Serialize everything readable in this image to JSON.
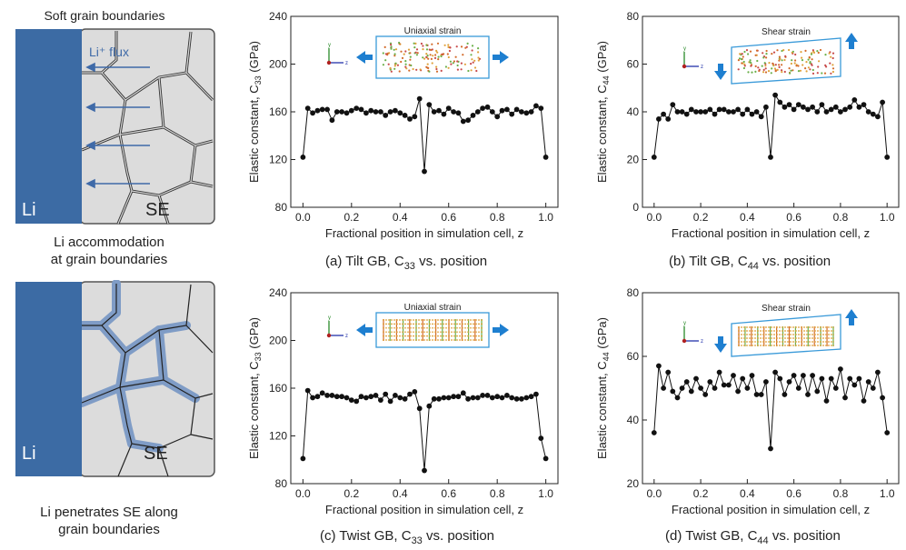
{
  "left_panels": {
    "top": {
      "title": "Soft grain boundaries",
      "flux_label": "Li⁺ flux",
      "li_label": "Li",
      "se_label": "SE",
      "caption_line1": "Li accommodation",
      "caption_line2": "at grain boundaries"
    },
    "bottom": {
      "li_label": "Li",
      "se_label": "SE",
      "caption_line1": "Li penetrates SE along",
      "caption_line2": "grain boundaries"
    }
  },
  "colors": {
    "li_blue": "#3c6ba4",
    "se_gray": "#dcdcdc",
    "arrow_blue": "#3f6aa8",
    "inset_arrow": "#1e7fd0",
    "inset_frame": "#3a9ad9",
    "marker": "#111111"
  },
  "charts": [
    {
      "id": "a",
      "caption": "(a) Tilt GB, C33 vs. position",
      "caption_main": "(a) Tilt GB, C",
      "caption_sub": "33",
      "caption_tail": " vs. position",
      "ylabel_main": "Elastic constant, C",
      "ylabel_sub": "33",
      "ylabel_tail": " (GPa)",
      "inset_label": "Uniaxial strain",
      "inset_type": "uniaxial",
      "inset_lattice": "tilt"
    },
    {
      "id": "b",
      "caption": "(b) Tilt GB, C44 vs. position",
      "caption_main": "(b) Tilt GB, C",
      "caption_sub": "44",
      "caption_tail": " vs. position",
      "ylabel_main": "Elastic constant, C",
      "ylabel_sub": "44",
      "ylabel_tail": " (GPa)",
      "inset_label": "Shear strain",
      "inset_type": "shear",
      "inset_lattice": "tilt"
    },
    {
      "id": "c",
      "caption": "(c) Twist GB, C33 vs. position",
      "caption_main": "(c) Twist GB, C",
      "caption_sub": "33",
      "caption_tail": " vs. position",
      "ylabel_main": "Elastic constant, C",
      "ylabel_sub": "33",
      "ylabel_tail": " (GPa)",
      "inset_label": "Uniaxial strain",
      "inset_type": "uniaxial",
      "inset_lattice": "twist"
    },
    {
      "id": "d",
      "caption": "(d) Twist GB, C44 vs. position",
      "caption_main": "(d) Twist GB, C",
      "caption_sub": "44",
      "caption_tail": " vs. position",
      "ylabel_main": "Elastic constant, C",
      "ylabel_sub": "44",
      "ylabel_tail": " (GPa)",
      "inset_label": "Shear strain",
      "inset_type": "shear",
      "inset_lattice": "twist"
    }
  ],
  "chart_data": [
    {
      "type": "line",
      "title": "(a) Tilt GB, C33 vs. position",
      "xlabel": "Fractional position in simulation cell, z",
      "ylabel": "Elastic constant, C33 (GPa)",
      "xlim": [
        -0.05,
        1.05
      ],
      "ylim": [
        80,
        240
      ],
      "xticks": [
        0.0,
        0.2,
        0.4,
        0.6,
        0.8,
        1.0
      ],
      "xtick_labels": [
        "0.0",
        "0.2",
        "0.4",
        "0.6",
        "0.8",
        "1.0"
      ],
      "yticks": [
        80,
        120,
        160,
        200,
        240
      ],
      "ytick_labels": [
        "80",
        "120",
        "160",
        "200",
        "240"
      ],
      "x": [
        0.0,
        0.02,
        0.04,
        0.06,
        0.08,
        0.1,
        0.12,
        0.14,
        0.16,
        0.18,
        0.2,
        0.22,
        0.24,
        0.26,
        0.28,
        0.3,
        0.32,
        0.34,
        0.36,
        0.38,
        0.4,
        0.42,
        0.44,
        0.46,
        0.48,
        0.5,
        0.52,
        0.54,
        0.56,
        0.58,
        0.6,
        0.62,
        0.64,
        0.66,
        0.68,
        0.7,
        0.72,
        0.74,
        0.76,
        0.78,
        0.8,
        0.82,
        0.84,
        0.86,
        0.88,
        0.9,
        0.92,
        0.94,
        0.96,
        0.98,
        1.0
      ],
      "y": [
        122,
        163,
        159,
        161,
        162,
        162,
        153,
        160,
        160,
        159,
        161,
        163,
        162,
        159,
        161,
        160,
        160,
        157,
        160,
        161,
        159,
        157,
        154,
        156,
        171,
        110,
        166,
        160,
        161,
        158,
        163,
        160,
        159,
        152,
        153,
        157,
        160,
        163,
        164,
        160,
        156,
        161,
        162,
        158,
        162,
        160,
        159,
        160,
        165,
        163,
        122
      ]
    },
    {
      "type": "line",
      "title": "(b) Tilt GB, C44 vs. position",
      "xlabel": "Fractional position in simulation cell, z",
      "ylabel": "Elastic constant, C44 (GPa)",
      "xlim": [
        -0.05,
        1.05
      ],
      "ylim": [
        0,
        80
      ],
      "xticks": [
        0.0,
        0.2,
        0.4,
        0.6,
        0.8,
        1.0
      ],
      "xtick_labels": [
        "0.0",
        "0.2",
        "0.4",
        "0.6",
        "0.8",
        "1.0"
      ],
      "yticks": [
        0,
        20,
        40,
        60,
        80
      ],
      "ytick_labels": [
        "0",
        "20",
        "40",
        "60",
        "80"
      ],
      "x": [
        0.0,
        0.02,
        0.04,
        0.06,
        0.08,
        0.1,
        0.12,
        0.14,
        0.16,
        0.18,
        0.2,
        0.22,
        0.24,
        0.26,
        0.28,
        0.3,
        0.32,
        0.34,
        0.36,
        0.38,
        0.4,
        0.42,
        0.44,
        0.46,
        0.48,
        0.5,
        0.52,
        0.54,
        0.56,
        0.58,
        0.6,
        0.62,
        0.64,
        0.66,
        0.68,
        0.7,
        0.72,
        0.74,
        0.76,
        0.78,
        0.8,
        0.82,
        0.84,
        0.86,
        0.88,
        0.9,
        0.92,
        0.94,
        0.96,
        0.98,
        1.0
      ],
      "y": [
        21,
        37,
        39,
        37,
        43,
        40,
        40,
        39,
        41,
        40,
        40,
        40,
        41,
        39,
        41,
        41,
        40,
        40,
        41,
        39,
        41,
        39,
        40,
        38,
        42,
        21,
        47,
        44,
        42,
        43,
        41,
        43,
        42,
        41,
        42,
        40,
        43,
        40,
        41,
        42,
        40,
        41,
        42,
        45,
        42,
        43,
        40,
        39,
        38,
        44,
        21
      ]
    },
    {
      "type": "line",
      "title": "(c) Twist GB, C33 vs. position",
      "xlabel": "Fractional position in simulation cell, z",
      "ylabel": "Elastic constant, C33 (GPa)",
      "xlim": [
        -0.05,
        1.05
      ],
      "ylim": [
        80,
        240
      ],
      "xticks": [
        0.0,
        0.2,
        0.4,
        0.6,
        0.8,
        1.0
      ],
      "xtick_labels": [
        "0.0",
        "0.2",
        "0.4",
        "0.6",
        "0.8",
        "1.0"
      ],
      "yticks": [
        80,
        120,
        160,
        200,
        240
      ],
      "ytick_labels": [
        "80",
        "120",
        "160",
        "200",
        "240"
      ],
      "x": [
        0.0,
        0.02,
        0.04,
        0.06,
        0.08,
        0.1,
        0.12,
        0.14,
        0.16,
        0.18,
        0.2,
        0.22,
        0.24,
        0.26,
        0.28,
        0.3,
        0.32,
        0.34,
        0.36,
        0.38,
        0.4,
        0.42,
        0.44,
        0.46,
        0.48,
        0.5,
        0.52,
        0.54,
        0.56,
        0.58,
        0.6,
        0.62,
        0.64,
        0.66,
        0.68,
        0.7,
        0.72,
        0.74,
        0.76,
        0.78,
        0.8,
        0.82,
        0.84,
        0.86,
        0.88,
        0.9,
        0.92,
        0.94,
        0.96,
        0.98,
        1.0
      ],
      "y": [
        101,
        158,
        152,
        153,
        156,
        154,
        154,
        153,
        153,
        152,
        150,
        149,
        153,
        152,
        153,
        154,
        150,
        155,
        149,
        154,
        152,
        151,
        155,
        157,
        143,
        91,
        145,
        151,
        151,
        152,
        152,
        153,
        153,
        156,
        151,
        152,
        152,
        154,
        154,
        152,
        153,
        152,
        154,
        152,
        151,
        151,
        152,
        153,
        155,
        118,
        101
      ]
    },
    {
      "type": "line",
      "title": "(d) Twist GB, C44 vs. position",
      "xlabel": "Fractional position in simulation cell, z",
      "ylabel": "Elastic constant, C44 (GPa)",
      "xlim": [
        -0.05,
        1.05
      ],
      "ylim": [
        20,
        80
      ],
      "xticks": [
        0.0,
        0.2,
        0.4,
        0.6,
        0.8,
        1.0
      ],
      "xtick_labels": [
        "0.0",
        "0.2",
        "0.4",
        "0.6",
        "0.8",
        "1.0"
      ],
      "yticks": [
        20,
        40,
        60,
        80
      ],
      "ytick_labels": [
        "20",
        "40",
        "60",
        "80"
      ],
      "x": [
        0.0,
        0.02,
        0.04,
        0.06,
        0.08,
        0.1,
        0.12,
        0.14,
        0.16,
        0.18,
        0.2,
        0.22,
        0.24,
        0.26,
        0.28,
        0.3,
        0.32,
        0.34,
        0.36,
        0.38,
        0.4,
        0.42,
        0.44,
        0.46,
        0.48,
        0.5,
        0.52,
        0.54,
        0.56,
        0.58,
        0.6,
        0.62,
        0.64,
        0.66,
        0.68,
        0.7,
        0.72,
        0.74,
        0.76,
        0.78,
        0.8,
        0.82,
        0.84,
        0.86,
        0.88,
        0.9,
        0.92,
        0.94,
        0.96,
        0.98,
        1.0
      ],
      "y": [
        36,
        57,
        50,
        55,
        49,
        47,
        50,
        52,
        49,
        53,
        50,
        48,
        52,
        50,
        55,
        51,
        51,
        54,
        49,
        53,
        50,
        54,
        48,
        48,
        52,
        31,
        55,
        53,
        48,
        52,
        54,
        50,
        54,
        48,
        54,
        49,
        53,
        46,
        53,
        50,
        56,
        47,
        53,
        51,
        53,
        46,
        52,
        50,
        55,
        47,
        36
      ]
    }
  ]
}
